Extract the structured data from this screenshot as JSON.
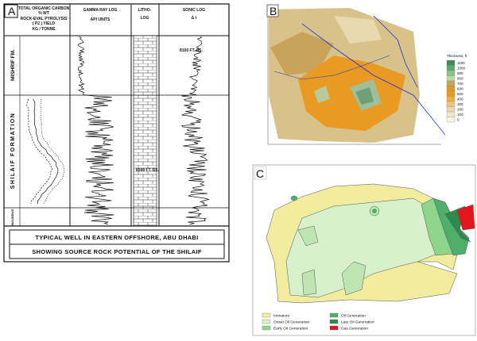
{
  "panel_a": {
    "label": "A",
    "headers": {
      "toc": [
        "TOTAL ORGANIC CARBON",
        "% WT",
        "ROCK-EVAL PYROLYSIS",
        "( P2 ) YIELD",
        "KG / TONNE"
      ],
      "gamma": [
        "GAMMA RAY LOG",
        "API UNITS"
      ],
      "litho": [
        "LITHO-",
        "LOG"
      ],
      "sonic": [
        "SONIC LOG",
        "Δ t"
      ]
    },
    "formations": [
      "MISHRIF FM.",
      "SHILAIF FORMATION",
      "MAUDDUD"
    ],
    "depth_marks": [
      "8100 FT. SS.",
      "8500 FT. SS."
    ],
    "caption": [
      "TYPICAL WELL IN EASTERN OFFSHORE, ABU DHABI",
      "SHOWING SOURCE ROCK POTENTIAL OF THE SHILAIF"
    ]
  },
  "panel_b": {
    "label": "B",
    "legend_title": "Thickness, ft",
    "legend_values": [
      1100,
      1000,
      900,
      800,
      700,
      600,
      500,
      400,
      300,
      200,
      100,
      0
    ]
  },
  "panel_c": {
    "label": "C",
    "legend": [
      "Immature",
      "Onset Oil Generation",
      "Early Oil Generation",
      "Oil Generation",
      "Late Oil Generation",
      "Gas Generation"
    ]
  }
}
